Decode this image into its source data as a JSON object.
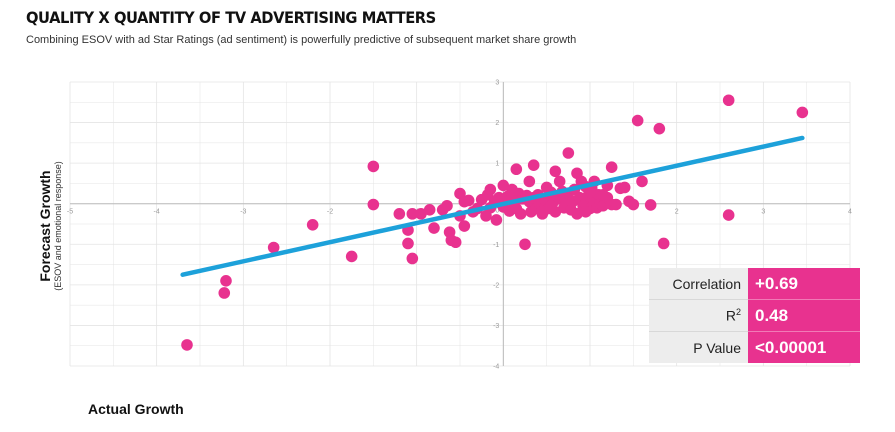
{
  "header": {
    "title": "QUALITY X QUANTITY OF TV ADVERTISING MATTERS",
    "subtitle": "Combining ESOV with ad Star Ratings (ad sentiment) is powerfully predictive of subsequent market share growth"
  },
  "colors": {
    "point": "#e8328f",
    "trend": "#1da1da",
    "grid": "#e4e4e4",
    "axis": "#bbbbbb",
    "panel": "#ededed"
  },
  "stats": {
    "rows": [
      {
        "label": "Correlation",
        "value": "+0.69"
      },
      {
        "label": "R2",
        "value": "0.48"
      },
      {
        "label": "P Value",
        "value": "<0.00001"
      }
    ]
  },
  "chart_data": {
    "type": "scatter",
    "title": "QUALITY X QUANTITY OF TV ADVERTISING MATTERS",
    "xlabel": "Actual Growth",
    "ylabel": "Forecast Growth",
    "ylabel_sub": "(ESOV and emotional response)",
    "xlim": [
      -5,
      4
    ],
    "ylim": [
      -4,
      3
    ],
    "grid": true,
    "x_ticks": [
      -5,
      -4,
      -3,
      -2,
      -1,
      0,
      1,
      2,
      3,
      4
    ],
    "y_ticks": [
      -4,
      -3,
      -2,
      -1,
      0,
      1,
      2,
      3
    ],
    "trendline": {
      "x": [
        -3.7,
        3.45
      ],
      "y": [
        -1.75,
        1.62
      ]
    },
    "series": [
      {
        "name": "Campaigns",
        "points": [
          [
            -3.65,
            -3.48
          ],
          [
            -3.2,
            -1.9
          ],
          [
            -3.22,
            -2.2
          ],
          [
            -2.65,
            -1.08
          ],
          [
            -2.2,
            -0.52
          ],
          [
            -1.75,
            -1.3
          ],
          [
            -1.5,
            0.92
          ],
          [
            -1.5,
            -0.02
          ],
          [
            -1.2,
            -0.25
          ],
          [
            -1.05,
            -0.25
          ],
          [
            -1.1,
            -0.65
          ],
          [
            -1.1,
            -0.98
          ],
          [
            -1.05,
            -1.35
          ],
          [
            -0.95,
            -0.25
          ],
          [
            -0.85,
            -0.15
          ],
          [
            -0.8,
            -0.6
          ],
          [
            -0.7,
            -0.15
          ],
          [
            -0.65,
            -0.05
          ],
          [
            -0.62,
            -0.7
          ],
          [
            -0.55,
            -0.95
          ],
          [
            -0.5,
            -0.3
          ],
          [
            -0.5,
            0.25
          ],
          [
            -0.45,
            -0.55
          ],
          [
            -0.4,
            0.08
          ],
          [
            -0.35,
            -0.2
          ],
          [
            -0.3,
            -0.12
          ],
          [
            -0.25,
            0.1
          ],
          [
            -0.2,
            -0.3
          ],
          [
            -0.18,
            0.22
          ],
          [
            -0.15,
            -0.1
          ],
          [
            -0.1,
            0.05
          ],
          [
            -0.08,
            -0.4
          ],
          [
            -0.05,
            0.15
          ],
          [
            0.0,
            -0.08
          ],
          [
            0.02,
            0.1
          ],
          [
            0.05,
            0.18
          ],
          [
            0.07,
            -0.18
          ],
          [
            0.1,
            0.35
          ],
          [
            0.12,
            0.03
          ],
          [
            0.15,
            -0.12
          ],
          [
            0.18,
            0.25
          ],
          [
            0.2,
            -0.25
          ],
          [
            0.22,
            0.12
          ],
          [
            0.25,
            -1.0
          ],
          [
            0.27,
            0.2
          ],
          [
            0.3,
            0.05
          ],
          [
            0.32,
            -0.2
          ],
          [
            0.35,
            0.15
          ],
          [
            0.38,
            -0.12
          ],
          [
            0.4,
            0.22
          ],
          [
            0.42,
            0.0
          ],
          [
            0.45,
            -0.25
          ],
          [
            0.48,
            0.1
          ],
          [
            0.5,
            0.4
          ],
          [
            0.52,
            -0.12
          ],
          [
            0.55,
            0.28
          ],
          [
            0.58,
            0.05
          ],
          [
            0.6,
            -0.2
          ],
          [
            0.62,
            0.12
          ],
          [
            0.65,
            0.55
          ],
          [
            0.68,
            0.3
          ],
          [
            0.7,
            -0.1
          ],
          [
            0.72,
            0.08
          ],
          [
            0.75,
            0.25
          ],
          [
            0.78,
            -0.15
          ],
          [
            0.8,
            0.05
          ],
          [
            0.82,
            0.35
          ],
          [
            0.85,
            -0.25
          ],
          [
            0.88,
            0.15
          ],
          [
            0.9,
            0.55
          ],
          [
            0.92,
            -0.05
          ],
          [
            0.95,
            0.0
          ],
          [
            0.98,
            0.2
          ],
          [
            1.0,
            -0.12
          ],
          [
            1.02,
            0.38
          ],
          [
            1.05,
            0.05
          ],
          [
            1.08,
            -0.1
          ],
          [
            1.1,
            0.22
          ],
          [
            1.12,
            0.0
          ],
          [
            1.15,
            -0.05
          ],
          [
            1.2,
            0.15
          ],
          [
            1.25,
            -0.02
          ],
          [
            1.3,
            -0.02
          ],
          [
            1.35,
            0.38
          ],
          [
            1.45,
            0.06
          ],
          [
            1.5,
            -0.02
          ],
          [
            1.25,
            0.9
          ],
          [
            0.6,
            0.8
          ],
          [
            0.75,
            1.25
          ],
          [
            0.85,
            0.75
          ],
          [
            0.95,
            0.42
          ],
          [
            1.05,
            0.55
          ],
          [
            1.15,
            0.22
          ],
          [
            1.0,
            0.28
          ],
          [
            1.2,
            0.45
          ],
          [
            1.4,
            0.4
          ],
          [
            1.6,
            0.55
          ],
          [
            1.7,
            -0.03
          ],
          [
            0.0,
            0.45
          ],
          [
            0.3,
            0.55
          ],
          [
            0.35,
            0.95
          ],
          [
            0.15,
            0.85
          ],
          [
            -0.45,
            0.05
          ],
          [
            1.55,
            2.05
          ],
          [
            1.8,
            1.85
          ],
          [
            1.85,
            -0.98
          ],
          [
            2.6,
            2.55
          ],
          [
            2.6,
            -0.28
          ],
          [
            3.45,
            2.25
          ],
          [
            -0.6,
            -0.9
          ],
          [
            0.1,
            0.15
          ],
          [
            -0.15,
            0.35
          ],
          [
            0.45,
            -0.2
          ],
          [
            0.55,
            -0.05
          ],
          [
            0.95,
            -0.2
          ]
        ]
      }
    ]
  }
}
